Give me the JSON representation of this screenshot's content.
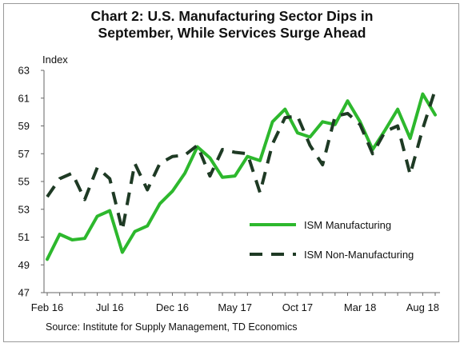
{
  "chart_data": {
    "type": "line",
    "title_line1": "Chart 2: U.S. Manufacturing Sector Dips in",
    "title_line2": "September, While Services Surge Ahead",
    "ylabel": "Index",
    "ylim": [
      47,
      63
    ],
    "yticks": [
      47,
      49,
      51,
      53,
      55,
      57,
      59,
      61,
      63
    ],
    "x_tick_labels": [
      "Feb 16",
      "Jul 16",
      "Dec 16",
      "May 17",
      "Oct 17",
      "Mar 18",
      "Aug 18"
    ],
    "x_tick_index": [
      0,
      5,
      10,
      15,
      20,
      25,
      30
    ],
    "x": [
      "Feb 16",
      "Mar 16",
      "Apr 16",
      "May 16",
      "Jun 16",
      "Jul 16",
      "Aug 16",
      "Sep 16",
      "Oct 16",
      "Nov 16",
      "Dec 16",
      "Jan 17",
      "Feb 17",
      "Mar 17",
      "Apr 17",
      "May 17",
      "Jun 17",
      "Jul 17",
      "Aug 17",
      "Sep 17",
      "Oct 17",
      "Nov 17",
      "Dec 17",
      "Jan 18",
      "Feb 18",
      "Mar 18",
      "Apr 18",
      "May 18",
      "Jun 18",
      "Jul 18",
      "Aug 18",
      "Sep 18"
    ],
    "series": [
      {
        "name": "ISM Manufacturing",
        "color": "#2db82d",
        "style": "solid",
        "values": [
          49.4,
          51.2,
          50.8,
          50.9,
          52.5,
          52.9,
          49.9,
          51.4,
          51.8,
          53.4,
          54.3,
          55.6,
          57.5,
          56.7,
          55.3,
          55.4,
          56.8,
          56.5,
          59.3,
          60.2,
          58.5,
          58.2,
          59.3,
          59.1,
          60.8,
          59.3,
          57.3,
          58.7,
          60.2,
          58.1,
          61.3,
          59.8
        ]
      },
      {
        "name": "ISM Non-Manufacturing",
        "color": "#1e3a24",
        "style": "dashed",
        "values": [
          53.9,
          55.2,
          55.6,
          53.7,
          56.0,
          55.2,
          51.5,
          56.3,
          54.4,
          56.3,
          56.8,
          56.9,
          57.6,
          55.4,
          57.3,
          57.1,
          57.0,
          54.2,
          57.7,
          59.6,
          59.7,
          57.6,
          56.2,
          59.7,
          59.9,
          59.1,
          57.0,
          58.6,
          59.0,
          55.5,
          58.8,
          61.6
        ]
      }
    ],
    "legend_placement": "lower-right inside plot",
    "grid": false,
    "source": "Source: Institute for Supply Management,  TD Economics"
  }
}
